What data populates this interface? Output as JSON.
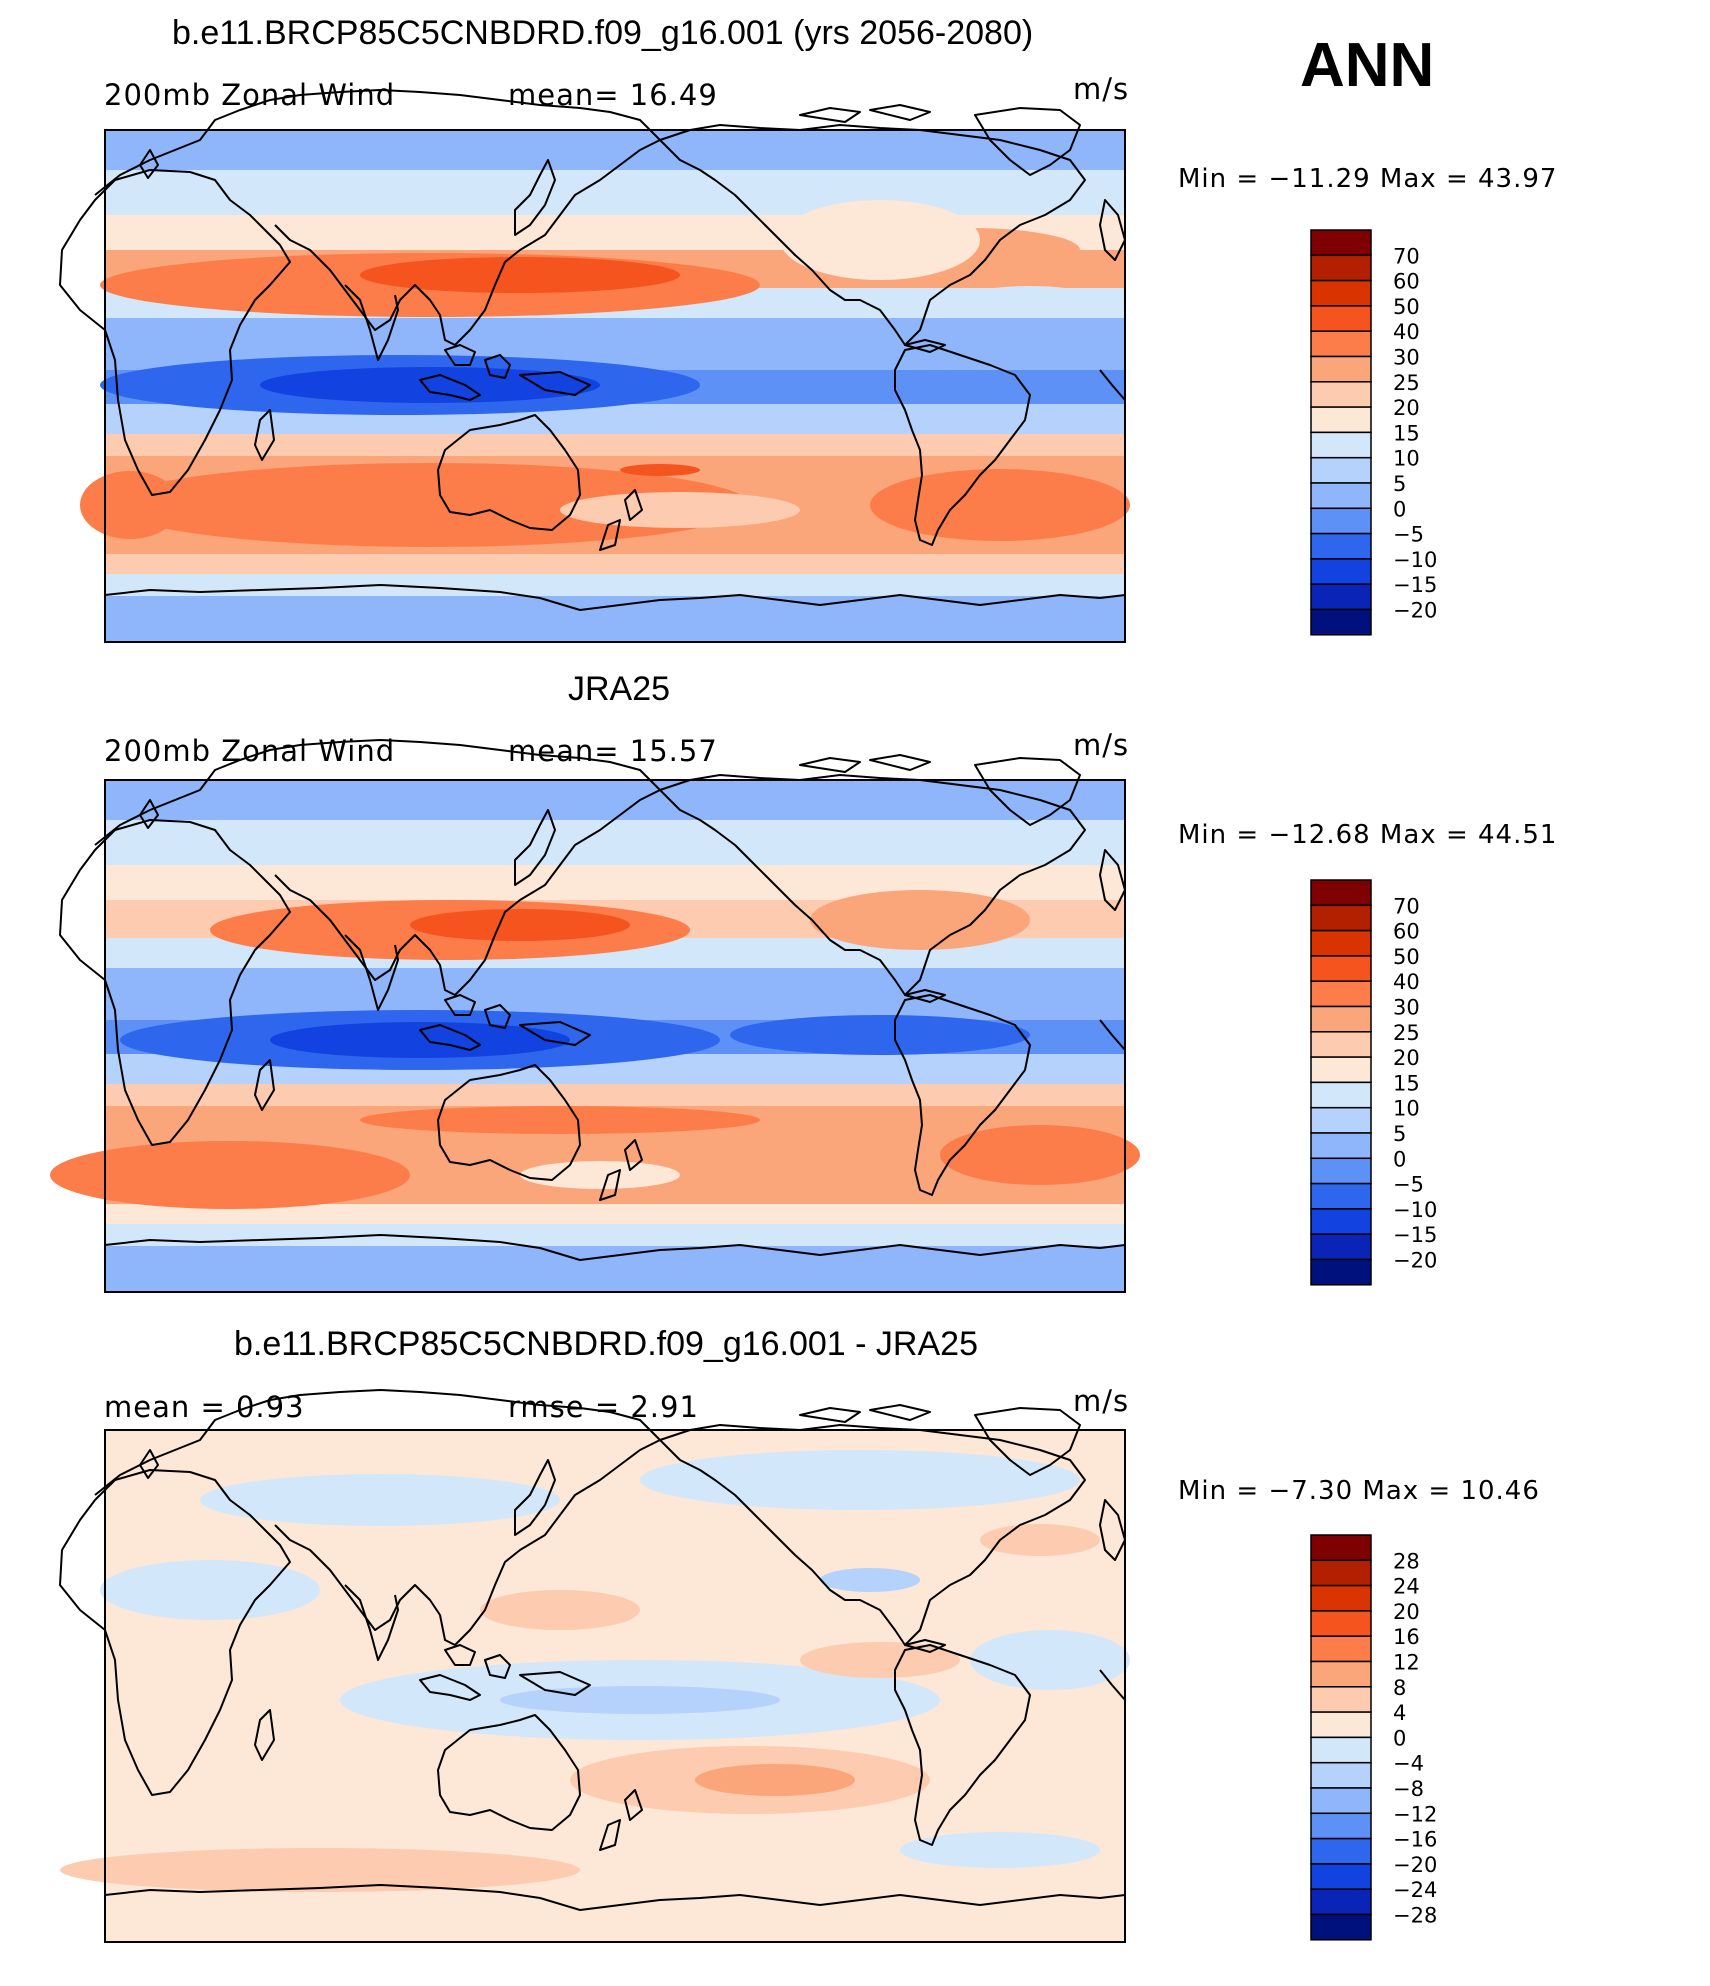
{
  "season": "ANN",
  "panels": [
    {
      "title": "b.e11.BRCP85C5CNBDRD.f09_g16.001 (yrs 2056-2080)",
      "left_label": "200mb  Zonal  Wind",
      "stat_label": "mean=   16.49",
      "units": "m/s",
      "min_max": "Min  =  −11.29  Max  =    43.97"
    },
    {
      "title": "JRA25",
      "left_label": "200mb  Zonal  Wind",
      "stat_label": "mean=   15.57",
      "units": "m/s",
      "min_max": "Min  =  −12.68  Max  =    44.51"
    },
    {
      "title": "b.e11.BRCP85C5CNBDRD.f09_g16.001 - JRA25",
      "left_label": "mean  =      0.93",
      "stat_label": "rmse  =      2.91",
      "units": "m/s",
      "min_max": "Min  =     −7.30  Max  =    10.46"
    }
  ],
  "colorbars": {
    "wind": {
      "labels": [
        "70",
        "60",
        "50",
        "40",
        "30",
        "25",
        "20",
        "15",
        "10",
        "5",
        "0",
        "−5",
        "−10",
        "−15",
        "−20"
      ],
      "colors": [
        "#7f0000",
        "#b22000",
        "#d93300",
        "#f5541e",
        "#fc7d4a",
        "#fba57a",
        "#fccbb0",
        "#fde7d6",
        "#d3e7fb",
        "#b4d2fb",
        "#8fb5fa",
        "#5d91f6",
        "#2f66ee",
        "#1242e0",
        "#0a24b8",
        "#00117e"
      ]
    },
    "diff": {
      "labels": [
        "28",
        "24",
        "20",
        "16",
        "12",
        "8",
        "4",
        "0",
        "−4",
        "−8",
        "−12",
        "−16",
        "−20",
        "−24",
        "−28"
      ],
      "colors": [
        "#7f0000",
        "#b22000",
        "#d93300",
        "#f5541e",
        "#fc7d4a",
        "#fba57a",
        "#fccbb0",
        "#fde7d6",
        "#d3e7fb",
        "#b4d2fb",
        "#8fb5fa",
        "#5d91f6",
        "#2f66ee",
        "#1242e0",
        "#0a24b8",
        "#00117e"
      ]
    }
  }
}
